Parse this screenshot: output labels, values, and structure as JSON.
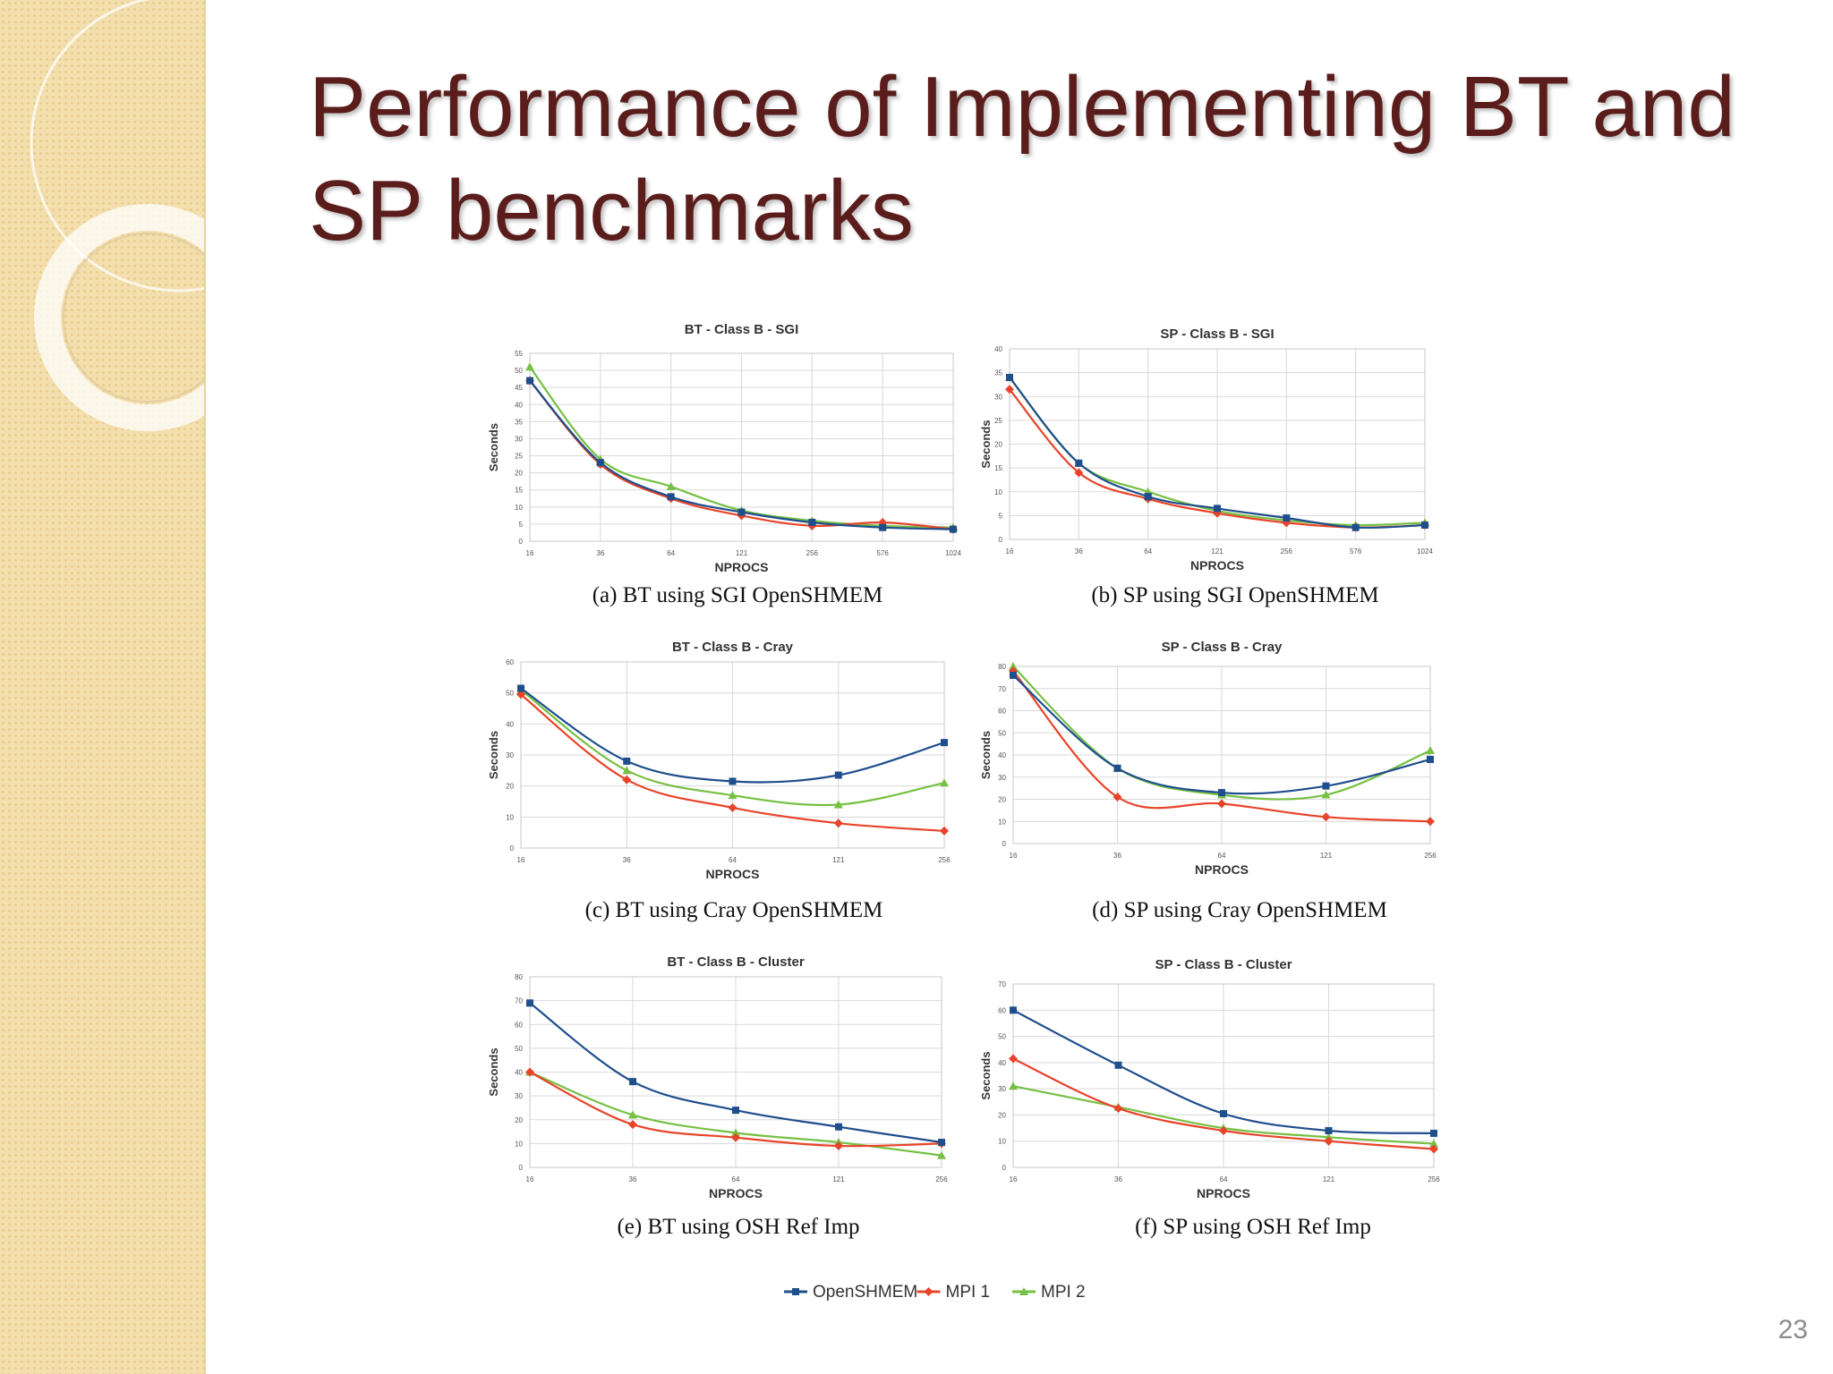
{
  "slide": {
    "title": "Performance of Implementing BT and SP benchmarks",
    "slide_number": "23"
  },
  "colors": {
    "title": "#5a1d1b",
    "sidebar": "#f3dfae",
    "OpenSHMEM": "#1f4e8c",
    "MPI 1": "#e8442a",
    "MPI 2": "#76c043"
  },
  "legend": [
    {
      "label": "OpenSHMEM",
      "color": "#1f4e8c",
      "marker": "square"
    },
    {
      "label": "MPI 1",
      "color": "#e8442a",
      "marker": "diamond"
    },
    {
      "label": "MPI 2",
      "color": "#76c043",
      "marker": "triangle"
    }
  ],
  "chart_data": [
    {
      "type": "line",
      "caption": "(a) BT using SGI OpenSHMEM",
      "title": "BT - Class B - SGI",
      "xlabel": "NPROCS",
      "ylabel": "Seconds",
      "categories": [
        "16",
        "36",
        "64",
        "121",
        "256",
        "576",
        "1024"
      ],
      "ylim": [
        0,
        55
      ],
      "yticks": [
        0,
        5,
        10,
        15,
        20,
        25,
        30,
        35,
        40,
        45,
        50,
        55
      ],
      "grid": true,
      "series": [
        {
          "name": "OpenSHMEM",
          "values": [
            47,
            23,
            13,
            8.5,
            5.5,
            4,
            3.5
          ]
        },
        {
          "name": "MPI 1",
          "values": [
            47,
            22.5,
            12.5,
            7.5,
            4.5,
            5.5,
            3.5
          ]
        },
        {
          "name": "MPI 2",
          "values": [
            51,
            24,
            16,
            9,
            6,
            4.5,
            4
          ]
        }
      ]
    },
    {
      "type": "line",
      "caption": "(b) SP using SGI OpenSHMEM",
      "title": "SP - Class B - SGI",
      "xlabel": "NPROCS",
      "ylabel": "Seconds",
      "categories": [
        "16",
        "36",
        "64",
        "121",
        "256",
        "576",
        "1024"
      ],
      "ylim": [
        0,
        40
      ],
      "yticks": [
        0,
        5,
        10,
        15,
        20,
        25,
        30,
        35,
        40
      ],
      "grid": true,
      "series": [
        {
          "name": "OpenSHMEM",
          "values": [
            34,
            16,
            9,
            6.5,
            4.5,
            2.5,
            3
          ]
        },
        {
          "name": "MPI 1",
          "values": [
            31.5,
            14,
            8.5,
            5.5,
            3.5,
            2.5,
            3
          ]
        },
        {
          "name": "MPI 2",
          "values": [
            34,
            16,
            10,
            6,
            4,
            3,
            3.5
          ]
        }
      ]
    },
    {
      "type": "line",
      "caption": "(c) BT using Cray OpenSHMEM",
      "title": "BT - Class B - Cray",
      "xlabel": "NPROCS",
      "ylabel": "Seconds",
      "categories": [
        "16",
        "36",
        "64",
        "121",
        "256"
      ],
      "ylim": [
        0,
        60
      ],
      "yticks": [
        0,
        10,
        20,
        30,
        40,
        50,
        60
      ],
      "grid": true,
      "series": [
        {
          "name": "OpenSHMEM",
          "values": [
            51.5,
            28,
            21.5,
            23.5,
            34
          ]
        },
        {
          "name": "MPI 1",
          "values": [
            49.5,
            22,
            13,
            8,
            5.5
          ]
        },
        {
          "name": "MPI 2",
          "values": [
            51,
            25,
            17,
            14,
            21
          ]
        }
      ]
    },
    {
      "type": "line",
      "caption": "(d) SP using Cray OpenSHMEM",
      "title": "SP - Class B - Cray",
      "xlabel": "NPROCS",
      "ylabel": "Seconds",
      "categories": [
        "16",
        "36",
        "64",
        "121",
        "256"
      ],
      "ylim": [
        0,
        80
      ],
      "yticks": [
        0,
        10,
        20,
        30,
        40,
        50,
        60,
        70,
        80
      ],
      "grid": true,
      "series": [
        {
          "name": "OpenSHMEM",
          "values": [
            76,
            34,
            23,
            26,
            38
          ]
        },
        {
          "name": "MPI 1",
          "values": [
            78,
            21,
            18,
            12,
            10
          ]
        },
        {
          "name": "MPI 2",
          "values": [
            80,
            34,
            22,
            22,
            42
          ]
        }
      ]
    },
    {
      "type": "line",
      "caption": "(e) BT using OSH Ref Imp",
      "title": "BT - Class B - Cluster",
      "xlabel": "NPROCS",
      "ylabel": "Seconds",
      "categories": [
        "16",
        "36",
        "64",
        "121",
        "256"
      ],
      "ylim": [
        0,
        80
      ],
      "yticks": [
        0,
        10,
        20,
        30,
        40,
        50,
        60,
        70,
        80
      ],
      "grid": true,
      "series": [
        {
          "name": "OpenSHMEM",
          "values": [
            69,
            36,
            24,
            17,
            10.5
          ]
        },
        {
          "name": "MPI 1",
          "values": [
            40,
            18,
            12.5,
            9,
            10
          ]
        },
        {
          "name": "MPI 2",
          "values": [
            40,
            22,
            14.5,
            10.5,
            5
          ]
        }
      ]
    },
    {
      "type": "line",
      "caption": "(f) SP using OSH Ref Imp",
      "title": "SP - Class B - Cluster",
      "xlabel": "NPROCS",
      "ylabel": "Seconds",
      "categories": [
        "16",
        "36",
        "64",
        "121",
        "256"
      ],
      "ylim": [
        0,
        70
      ],
      "yticks": [
        0,
        10,
        20,
        30,
        40,
        50,
        60,
        70
      ],
      "grid": true,
      "series": [
        {
          "name": "OpenSHMEM",
          "values": [
            60,
            39,
            20.5,
            14,
            13
          ]
        },
        {
          "name": "MPI 1",
          "values": [
            41.5,
            22.5,
            14,
            10,
            7
          ]
        },
        {
          "name": "MPI 2",
          "values": [
            31,
            23,
            15,
            11.5,
            9
          ]
        }
      ]
    }
  ]
}
